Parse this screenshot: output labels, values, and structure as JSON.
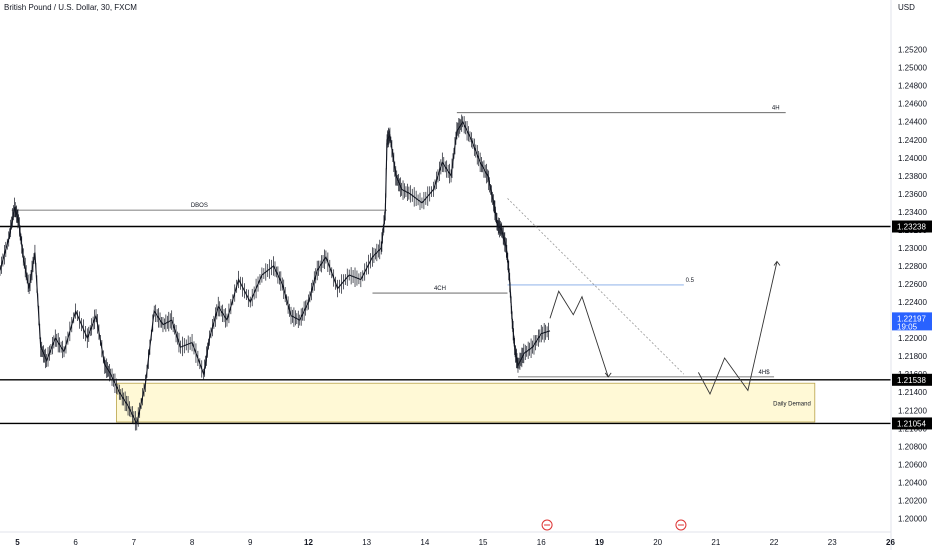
{
  "symbol_title": "British Pound / U.S. Dollar, 30, FXCM",
  "currency": "USD",
  "chart_data": {
    "type": "line",
    "title": "British Pound / U.S. Dollar, 30, FXCM",
    "ylim": [
      1.1985,
      1.2575
    ],
    "y_ticks": [
      1.2,
      1.202,
      1.204,
      1.206,
      1.208,
      1.21,
      1.212,
      1.214,
      1.216,
      1.218,
      1.22,
      1.222,
      1.224,
      1.226,
      1.228,
      1.23,
      1.232,
      1.234,
      1.236,
      1.238,
      1.24,
      1.242,
      1.244,
      1.246,
      1.248,
      1.25,
      1.252
    ],
    "x_ticks": [
      {
        "label": "5",
        "x": 0.3,
        "bold": true
      },
      {
        "label": "6",
        "x": 1.3,
        "bold": false
      },
      {
        "label": "7",
        "x": 2.3,
        "bold": false
      },
      {
        "label": "8",
        "x": 3.3,
        "bold": false
      },
      {
        "label": "9",
        "x": 4.3,
        "bold": false
      },
      {
        "label": "12",
        "x": 5.3,
        "bold": true
      },
      {
        "label": "13",
        "x": 6.3,
        "bold": false
      },
      {
        "label": "14",
        "x": 7.3,
        "bold": false
      },
      {
        "label": "15",
        "x": 8.3,
        "bold": false
      },
      {
        "label": "16",
        "x": 9.3,
        "bold": false
      },
      {
        "label": "19",
        "x": 10.3,
        "bold": true
      },
      {
        "label": "20",
        "x": 11.3,
        "bold": false
      },
      {
        "label": "21",
        "x": 12.3,
        "bold": false
      },
      {
        "label": "22",
        "x": 13.3,
        "bold": false
      },
      {
        "label": "23",
        "x": 14.3,
        "bold": false
      },
      {
        "label": "26",
        "x": 15.3,
        "bold": true
      }
    ],
    "series": [
      {
        "values": [
          [
            0,
            1.2275
          ],
          [
            0.15,
            1.231
          ],
          [
            0.25,
            1.2345
          ],
          [
            0.32,
            1.233
          ],
          [
            0.4,
            1.229
          ],
          [
            0.5,
            1.2255
          ],
          [
            0.6,
            1.2295
          ],
          [
            0.7,
            1.219
          ],
          [
            0.8,
            1.2175
          ],
          [
            0.95,
            1.22
          ],
          [
            1.1,
            1.2185
          ],
          [
            1.3,
            1.223
          ],
          [
            1.5,
            1.22
          ],
          [
            1.65,
            1.2225
          ],
          [
            1.8,
            1.217
          ],
          [
            1.9,
            1.216
          ],
          [
            2.05,
            1.214
          ],
          [
            2.2,
            1.2125
          ],
          [
            2.35,
            1.2105
          ],
          [
            2.5,
            1.215
          ],
          [
            2.65,
            1.223
          ],
          [
            2.8,
            1.2215
          ],
          [
            2.95,
            1.222
          ],
          [
            3.1,
            1.219
          ],
          [
            3.3,
            1.2195
          ],
          [
            3.5,
            1.216
          ],
          [
            3.6,
            1.22
          ],
          [
            3.75,
            1.2235
          ],
          [
            3.9,
            1.222
          ],
          [
            4.1,
            1.2265
          ],
          [
            4.3,
            1.224
          ],
          [
            4.5,
            1.227
          ],
          [
            4.7,
            1.228
          ],
          [
            4.85,
            1.226
          ],
          [
            5.0,
            1.2225
          ],
          [
            5.15,
            1.222
          ],
          [
            5.3,
            1.224
          ],
          [
            5.45,
            1.2275
          ],
          [
            5.6,
            1.229
          ],
          [
            5.8,
            1.2255
          ],
          [
            6.0,
            1.227
          ],
          [
            6.2,
            1.2265
          ],
          [
            6.4,
            1.229
          ],
          [
            6.55,
            1.23
          ],
          [
            6.62,
            1.234
          ],
          [
            6.65,
            1.242
          ],
          [
            6.7,
            1.2425
          ],
          [
            6.8,
            1.238
          ],
          [
            6.9,
            1.2365
          ],
          [
            7.05,
            1.236
          ],
          [
            7.25,
            1.235
          ],
          [
            7.45,
            1.2365
          ],
          [
            7.6,
            1.2395
          ],
          [
            7.75,
            1.238
          ],
          [
            7.85,
            1.243
          ],
          [
            7.95,
            1.244
          ],
          [
            8.1,
            1.242
          ],
          [
            8.25,
            1.2395
          ],
          [
            8.38,
            1.238
          ],
          [
            8.48,
            1.235
          ],
          [
            8.55,
            1.2325
          ],
          [
            8.62,
            1.232
          ],
          [
            8.7,
            1.23
          ],
          [
            8.75,
            1.227
          ],
          [
            8.8,
            1.222
          ],
          [
            8.85,
            1.2185
          ],
          [
            8.9,
            1.217
          ],
          [
            9.0,
            1.2183
          ],
          [
            9.15,
            1.219
          ],
          [
            9.3,
            1.2205
          ],
          [
            9.45,
            1.2208
          ]
        ]
      }
    ],
    "levels": [
      {
        "price": 1.23238,
        "label": "1.23238"
      },
      {
        "price": 1.21538,
        "label": "1.21538"
      },
      {
        "price": 1.21054,
        "label": "1.21054"
      }
    ],
    "zone": {
      "label": "Daily Demand",
      "x_from": 2.0,
      "x_to": 14.0,
      "y_top": 1.215,
      "y_bottom": 1.2107
    },
    "annotations": [
      {
        "label": "DBOS",
        "x_from": 0.2,
        "x_to": 6.65,
        "y": 1.2342
      },
      {
        "label": "4H",
        "x_from": 7.85,
        "x_to": 13.5,
        "y": 1.245
      },
      {
        "label": "4CH",
        "x_from": 6.4,
        "x_to": 8.72,
        "y": 1.225
      },
      {
        "label": "0.5",
        "x_from": 8.72,
        "x_to": 11.75,
        "y": 1.2259,
        "color": "#7fa7e6"
      },
      {
        "label": "4H$",
        "x_from": 8.9,
        "x_to": 13.3,
        "y": 1.2157
      }
    ],
    "current_price": {
      "price": 1.22197,
      "label": "1.22197",
      "countdown": "19:05",
      "color": "#2962ff"
    },
    "projection": [
      [
        9.45,
        1.2222
      ],
      [
        9.6,
        1.2252
      ],
      [
        9.85,
        1.2226
      ],
      [
        10.0,
        1.2246
      ],
      [
        10.45,
        1.2157
      ]
    ],
    "projection2": [
      [
        12.0,
        1.2162
      ],
      [
        12.2,
        1.2138
      ],
      [
        12.45,
        1.2178
      ],
      [
        12.85,
        1.2142
      ],
      [
        13.35,
        1.2285
      ]
    ],
    "dotted": [
      [
        8.72,
        1.2355
      ],
      [
        11.75,
        1.216
      ]
    ],
    "events_x": [
      9.4,
      11.7
    ]
  }
}
